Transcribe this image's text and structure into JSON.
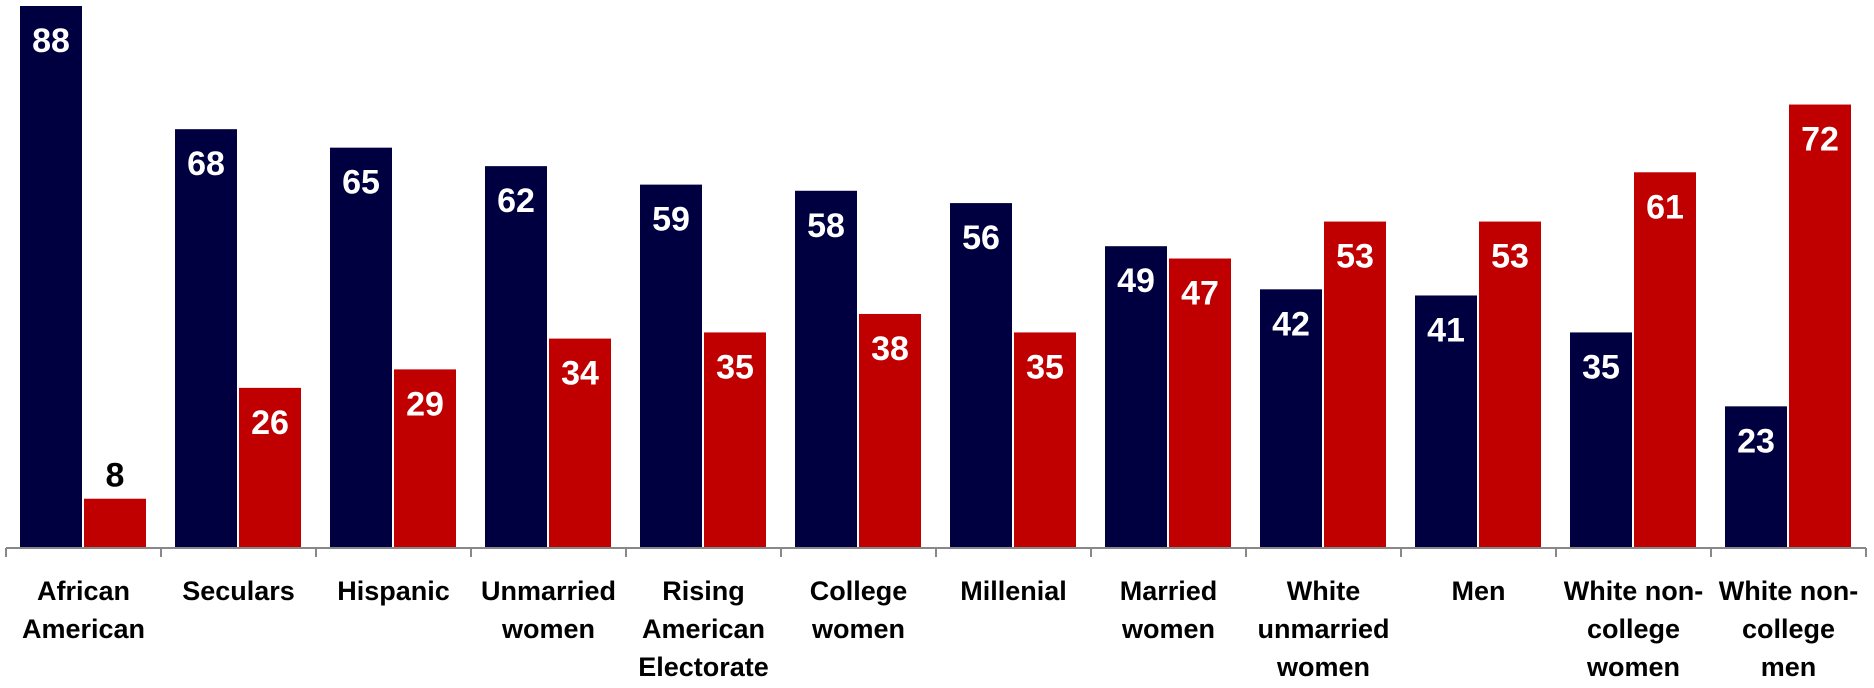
{
  "chart_data": {
    "type": "bar",
    "title": "",
    "xlabel": "",
    "ylabel": "",
    "ylim": [
      0,
      88
    ],
    "grid": false,
    "categories": [
      [
        "African",
        "American"
      ],
      [
        "Seculars"
      ],
      [
        "Hispanic"
      ],
      [
        "Unmarried",
        "women"
      ],
      [
        "Rising",
        "American",
        "Electorate"
      ],
      [
        "College",
        "women"
      ],
      [
        "Millenial"
      ],
      [
        "Married",
        "women"
      ],
      [
        "White",
        "unmarried",
        "women"
      ],
      [
        "Men"
      ],
      [
        "White non-",
        "college",
        "women"
      ],
      [
        "White non-",
        "college",
        "men"
      ]
    ],
    "series": [
      {
        "values": [
          88,
          68,
          65,
          62,
          59,
          58,
          56,
          49,
          42,
          41,
          35,
          23
        ],
        "color": "#000040"
      },
      {
        "values": [
          8,
          26,
          29,
          34,
          35,
          38,
          35,
          47,
          53,
          53,
          61,
          72
        ],
        "color": "#c00000"
      }
    ]
  }
}
